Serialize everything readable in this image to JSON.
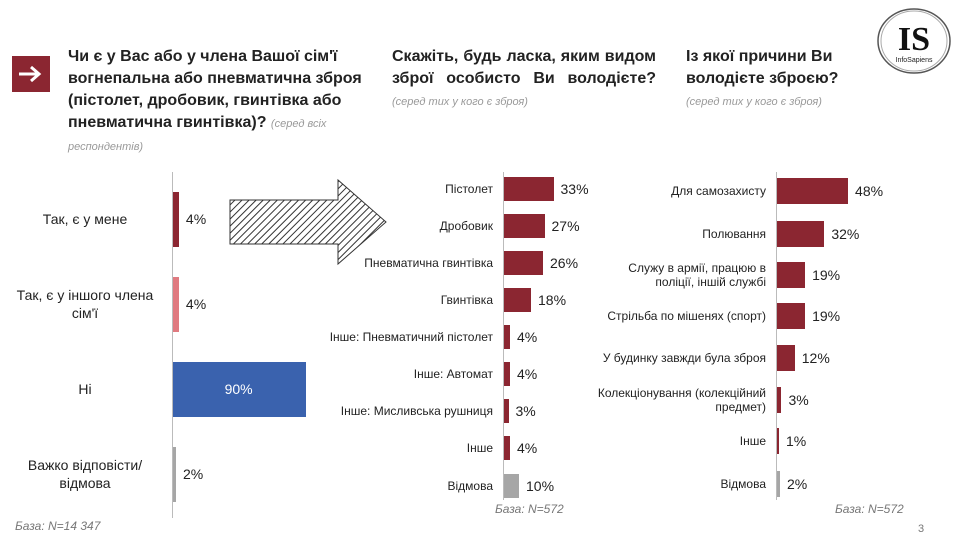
{
  "q1": {
    "title": "Чи є у Вас або у члена Вашої сім'ї вогнепальна або пневматична зброя (пістолет, дробовик, гвинтівка або пневматична гвинтівка)?",
    "note": "(серед всіх респондентів)"
  },
  "q2": {
    "title": "Скажіть, будь ласка, яким видом зброї особисто Ви володієте?",
    "note": "(серед тих у кого є зброя)"
  },
  "q3": {
    "title": "Із якої причини Ви володієте зброєю?",
    "note": "(серед тих у кого є зброя)"
  },
  "logo": {
    "text": "IS",
    "sub": "InfoSapiens"
  },
  "colors": {
    "main": "#8B2631",
    "pink": "#E07A80",
    "blue": "#3A62AE",
    "gray": "#A6A6A6"
  },
  "chart_data": [
    {
      "type": "bar",
      "orientation": "horizontal",
      "categories": [
        "Так, є у мене",
        "Так, є у іншого члена сім'ї",
        "Ні",
        "Важко відповісти/ відмова"
      ],
      "values": [
        4,
        4,
        90,
        2
      ],
      "unit": "%",
      "colors": [
        "#8B2631",
        "#E07A80",
        "#3A62AE",
        "#A6A6A6"
      ],
      "base": "База: N=14 347"
    },
    {
      "type": "bar",
      "orientation": "horizontal",
      "categories": [
        "Пістолет",
        "Дробовик",
        "Пневматична гвинтівка",
        "Гвинтівка",
        "Інше: Пневматичний пістолет",
        "Інше: Автомат",
        "Інше: Мисливська рушниця",
        "Інше",
        "Відмова"
      ],
      "values": [
        33,
        27,
        26,
        18,
        4,
        4,
        3,
        4,
        10
      ],
      "unit": "%",
      "colors": [
        "#8B2631",
        "#8B2631",
        "#8B2631",
        "#8B2631",
        "#8B2631",
        "#8B2631",
        "#8B2631",
        "#8B2631",
        "#A6A6A6"
      ],
      "base": "База: N=572"
    },
    {
      "type": "bar",
      "orientation": "horizontal",
      "categories": [
        "Для самозахисту",
        "Полювання",
        "Служу в армії, працюю в поліції, іншій службі",
        "Стрільба по мішенях (спорт)",
        "У будинку завжди була зброя",
        "Колекціонування (колекційний предмет)",
        "Інше",
        "Відмова"
      ],
      "values": [
        48,
        32,
        19,
        19,
        12,
        3,
        1,
        2
      ],
      "unit": "%",
      "colors": [
        "#8B2631",
        "#8B2631",
        "#8B2631",
        "#8B2631",
        "#8B2631",
        "#8B2631",
        "#8B2631",
        "#A6A6A6"
      ],
      "base": "База: N=572"
    }
  ],
  "page_number": "3"
}
